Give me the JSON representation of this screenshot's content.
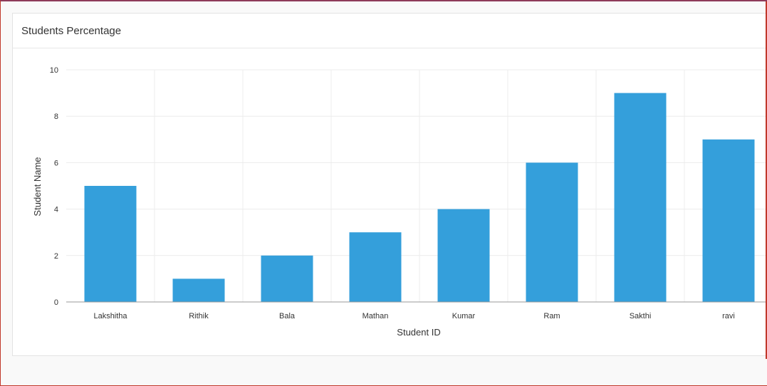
{
  "panel": {
    "title": "Students Percentage"
  },
  "chart_data": {
    "type": "bar",
    "title": "Students Percentage",
    "xlabel": "Student ID",
    "ylabel": "Student Name",
    "categories": [
      "Lakshitha",
      "Rithik",
      "Bala",
      "Mathan",
      "Kumar",
      "Ram",
      "Sakthi",
      "ravi"
    ],
    "values": [
      5,
      1,
      2,
      3,
      4,
      6,
      9,
      7
    ],
    "ylim": [
      0,
      10
    ],
    "yticks": [
      0,
      2,
      4,
      6,
      8,
      10
    ],
    "grid": true,
    "legend": "none",
    "bar_color": "#349fdb"
  }
}
